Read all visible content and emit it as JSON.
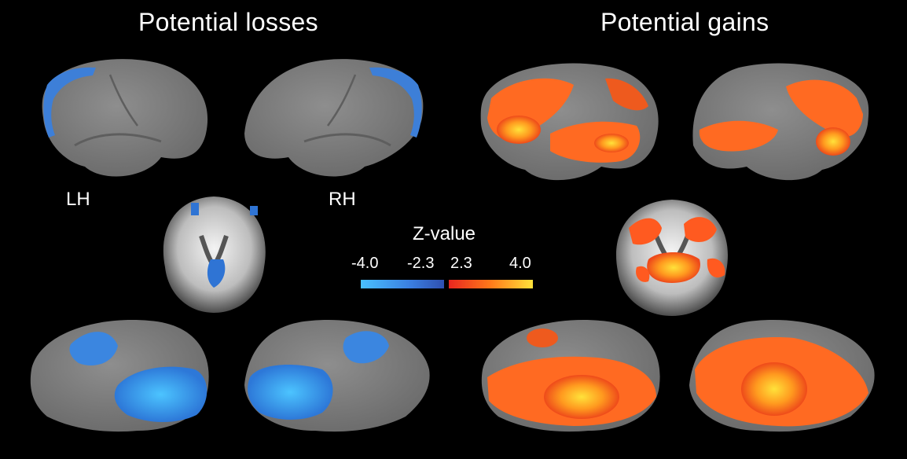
{
  "panels": {
    "losses_title": "Potential losses",
    "gains_title": "Potential gains"
  },
  "hemispheres": {
    "left": "LH",
    "right": "RH"
  },
  "colorbar": {
    "title": "Z-value",
    "ticks": [
      "-4.0",
      "-2.3",
      "2.3",
      "4.0"
    ],
    "negative_colors": [
      "#49c0ff",
      "#2f4fb0"
    ],
    "positive_colors": [
      "#e8261f",
      "#ffe23a"
    ]
  },
  "colors": {
    "background": "#000000",
    "cortex": "#7f7f7f",
    "loss_activation": "#3d8fe6",
    "gain_activation": "#ff6a22",
    "gain_peak": "#ffe23a"
  }
}
